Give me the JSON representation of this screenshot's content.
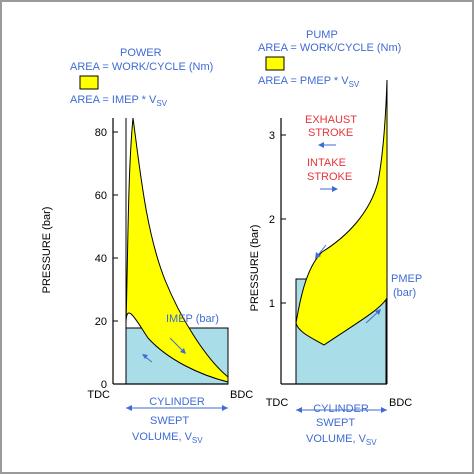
{
  "colors": {
    "loop_fill": "#ffff00",
    "rect_fill": "#a9dde8",
    "blue_text": "#3f6bd4",
    "red_text": "#e8343a",
    "ink": "#000000",
    "frame": "#9a9a9a"
  },
  "left": {
    "legend": {
      "title": "POWER",
      "line1": "AREA = WORK/CYCLE (Nm)",
      "line2": "AREA = IMEP * V",
      "line2_sub": "SV"
    },
    "ylabel": "PRESSURE (bar)",
    "yticks": [
      "0",
      "20",
      "40",
      "60",
      "80"
    ],
    "tdc": "TDC",
    "bdc": "BDC",
    "imep_label": "IMEP (bar)",
    "cylinder": "CYLINDER",
    "swept1": "SWEPT",
    "swept2": "VOLUME, V",
    "swept_sub": "SV",
    "imep_value": 18,
    "ylim": [
      0,
      84
    ]
  },
  "right": {
    "legend": {
      "title": "PUMP",
      "line1": "AREA = WORK/CYCLE (Nm)",
      "line2": "AREA = PMEP * V",
      "line2_sub": "SV"
    },
    "exhaust1": "EXHAUST",
    "exhaust2": "STROKE",
    "intake1": "INTAKE",
    "intake2": "STROKE",
    "ylabel": "PRESSURE (bar)",
    "yticks": [
      "1",
      "2",
      "3"
    ],
    "tdc": "TDC",
    "bdc": "BDC",
    "pmep1": "PMEP",
    "pmep2": "(bar)",
    "cylinder": "CYLINDER",
    "swept1": "SWEPT",
    "swept2": "VOLUME, V",
    "swept_sub": "SV",
    "pmep_value": 1.27,
    "ylim": [
      0,
      3.8
    ]
  }
}
